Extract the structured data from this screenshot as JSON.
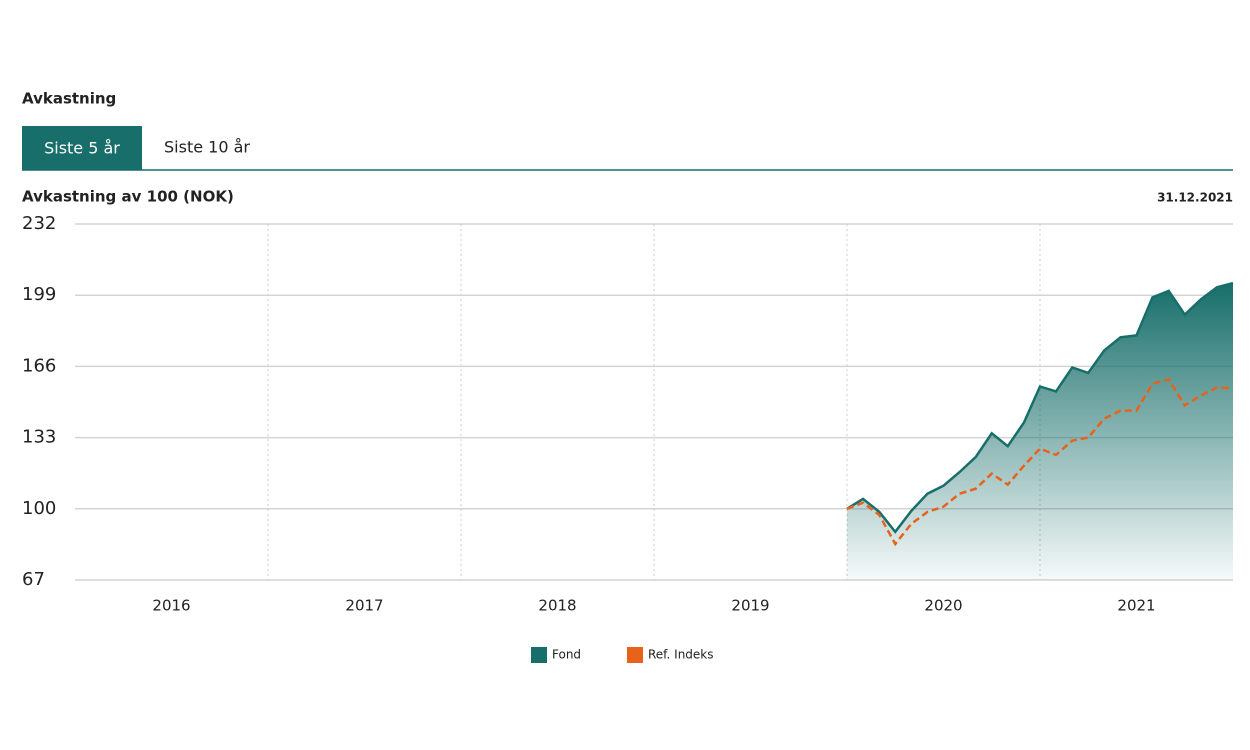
{
  "heading": "Avkastning",
  "tabs": [
    "Siste 5 år",
    "Siste 10 år"
  ],
  "chart_data": {
    "type": "area-line",
    "title": "Avkastning av 100 (NOK)",
    "date": "31.12.2021",
    "categories": [
      "2016",
      "2017",
      "2018",
      "2019",
      "2020",
      "2021"
    ],
    "xlim": [
      2016,
      2022
    ],
    "ylim": [
      67,
      232
    ],
    "yticks": [
      67,
      100,
      133,
      166,
      199,
      232
    ],
    "grid": true,
    "x": [
      2020,
      2020.083,
      2020.167,
      2020.25,
      2020.333,
      2020.417,
      2020.5,
      2020.583,
      2020.667,
      2020.75,
      2020.833,
      2020.917,
      2021,
      2021.083,
      2021.167,
      2021.25,
      2021.333,
      2021.417,
      2021.5,
      2021.583,
      2021.667,
      2021.75,
      2021.833,
      2021.917,
      2022
    ],
    "series": [
      {
        "name": "Fond",
        "color": "#176e6a",
        "fill": true,
        "values": [
          100,
          104.6,
          98.6,
          89.3,
          99,
          107,
          110.7,
          117,
          124,
          135,
          129,
          140,
          156.7,
          154.4,
          165.5,
          163,
          173.4,
          179.5,
          180.4,
          198,
          201,
          190,
          197,
          202.7,
          204.6
        ]
      },
      {
        "name": "Ref. Indeks",
        "color": "#e8621a",
        "dashed": true,
        "values": [
          100,
          102.8,
          97.2,
          83.7,
          93,
          98.6,
          101,
          107,
          109.3,
          116.3,
          111.2,
          120,
          127.9,
          125,
          131.6,
          133,
          141.8,
          145.5,
          145.5,
          158,
          160,
          147.9,
          152.5,
          156.2,
          155.8
        ]
      }
    ]
  }
}
